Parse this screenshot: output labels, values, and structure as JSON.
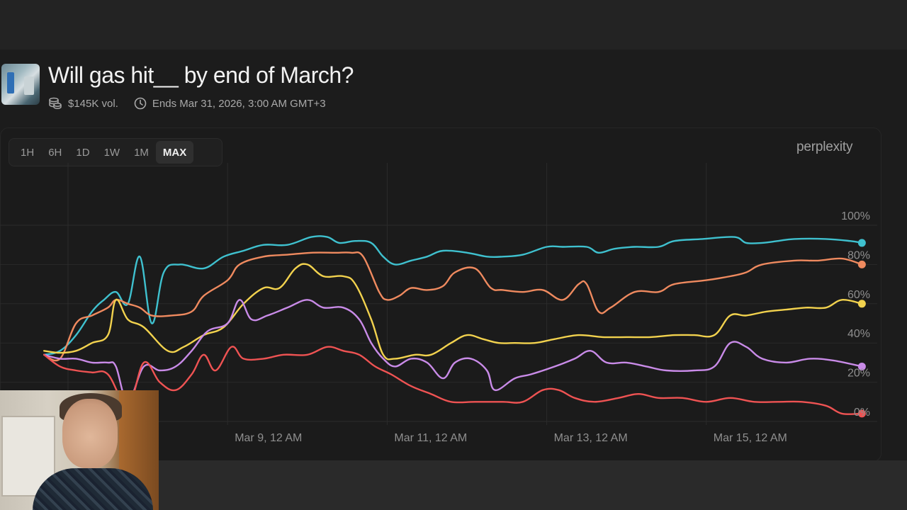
{
  "market": {
    "title": "Will gas hit__ by end of March?",
    "volume": "$145K vol.",
    "ends": "Ends Mar 31, 2026, 3:00 AM GMT+3"
  },
  "range_tabs": [
    {
      "label": "1H",
      "active": false
    },
    {
      "label": "6H",
      "active": false
    },
    {
      "label": "1D",
      "active": false
    },
    {
      "label": "1W",
      "active": false
    },
    {
      "label": "1M",
      "active": false
    },
    {
      "label": "MAX",
      "active": true
    }
  ],
  "brand": "perplexity",
  "colors": {
    "page_bg": "#1c1c1c",
    "grid": "#2b2b2b",
    "tick_text": "#8f8f8f",
    "cyan": "#3fc1cf",
    "orange": "#ef8a5f",
    "yellow": "#f2d24e",
    "purple": "#c98be8",
    "red": "#ef5353"
  },
  "icons": {
    "volume": "coins-stack-icon",
    "ends": "clock-icon"
  },
  "chart_data": {
    "type": "line",
    "x_ticks": [
      "Mar 9, 12 AM",
      "Mar 11, 12 AM",
      "Mar 13, 12 AM",
      "Mar 15, 12 AM"
    ],
    "y_ticks": [
      "100%",
      "80%",
      "60%",
      "40%",
      "20%",
      "0%"
    ],
    "ylim": [
      0,
      100
    ],
    "grid": true,
    "series": [
      {
        "color": "#3fc1cf",
        "points": [
          [
            6.2,
            34
          ],
          [
            6.4,
            36
          ],
          [
            6.6,
            44
          ],
          [
            6.8,
            56
          ],
          [
            6.95,
            62
          ],
          [
            7.1,
            66
          ],
          [
            7.25,
            60
          ],
          [
            7.4,
            84
          ],
          [
            7.55,
            50
          ],
          [
            7.7,
            76
          ],
          [
            7.9,
            80
          ],
          [
            8.2,
            78
          ],
          [
            8.45,
            84
          ],
          [
            8.7,
            87
          ],
          [
            8.95,
            90
          ],
          [
            9.25,
            90
          ],
          [
            9.55,
            94
          ],
          [
            9.75,
            94
          ],
          [
            9.9,
            91
          ],
          [
            10.1,
            92
          ],
          [
            10.3,
            91
          ],
          [
            10.45,
            84
          ],
          [
            10.6,
            80
          ],
          [
            10.8,
            82
          ],
          [
            11.0,
            84
          ],
          [
            11.2,
            87
          ],
          [
            11.5,
            86
          ],
          [
            11.75,
            84
          ],
          [
            11.95,
            84
          ],
          [
            12.2,
            85
          ],
          [
            12.5,
            89
          ],
          [
            12.7,
            89
          ],
          [
            13.0,
            89
          ],
          [
            13.15,
            86
          ],
          [
            13.35,
            88
          ],
          [
            13.6,
            89
          ],
          [
            13.9,
            89
          ],
          [
            14.1,
            92
          ],
          [
            14.45,
            93
          ],
          [
            14.85,
            94
          ],
          [
            15.0,
            91
          ],
          [
            15.2,
            91
          ],
          [
            15.4,
            92
          ],
          [
            15.6,
            93
          ],
          [
            16.0,
            93
          ],
          [
            16.3,
            92
          ],
          [
            16.45,
            91
          ]
        ]
      },
      {
        "color": "#ef8a5f",
        "points": [
          [
            6.2,
            34
          ],
          [
            6.4,
            32
          ],
          [
            6.6,
            50
          ],
          [
            6.8,
            54
          ],
          [
            7.0,
            58
          ],
          [
            7.1,
            62
          ],
          [
            7.25,
            60
          ],
          [
            7.4,
            58
          ],
          [
            7.55,
            54
          ],
          [
            7.8,
            54
          ],
          [
            8.05,
            56
          ],
          [
            8.2,
            64
          ],
          [
            8.5,
            72
          ],
          [
            8.65,
            80
          ],
          [
            8.95,
            84
          ],
          [
            9.25,
            85
          ],
          [
            9.55,
            86
          ],
          [
            9.85,
            86
          ],
          [
            10.05,
            86
          ],
          [
            10.2,
            84
          ],
          [
            10.4,
            66
          ],
          [
            10.5,
            62
          ],
          [
            10.65,
            64
          ],
          [
            10.8,
            68
          ],
          [
            11.0,
            67
          ],
          [
            11.2,
            69
          ],
          [
            11.35,
            76
          ],
          [
            11.6,
            78
          ],
          [
            11.8,
            68
          ],
          [
            11.95,
            67
          ],
          [
            12.2,
            66
          ],
          [
            12.45,
            67
          ],
          [
            12.7,
            62
          ],
          [
            12.9,
            70
          ],
          [
            13.0,
            70
          ],
          [
            13.15,
            56
          ],
          [
            13.3,
            58
          ],
          [
            13.6,
            66
          ],
          [
            13.9,
            66
          ],
          [
            14.1,
            70
          ],
          [
            14.5,
            72
          ],
          [
            14.8,
            74
          ],
          [
            15.0,
            76
          ],
          [
            15.2,
            80
          ],
          [
            15.6,
            82
          ],
          [
            15.9,
            82
          ],
          [
            16.2,
            83
          ],
          [
            16.45,
            80
          ]
        ]
      },
      {
        "color": "#f2d24e",
        "points": [
          [
            6.2,
            36
          ],
          [
            6.4,
            35
          ],
          [
            6.6,
            36
          ],
          [
            6.8,
            40
          ],
          [
            7.0,
            44
          ],
          [
            7.1,
            62
          ],
          [
            7.25,
            52
          ],
          [
            7.45,
            48
          ],
          [
            7.75,
            36
          ],
          [
            7.95,
            38
          ],
          [
            8.2,
            44
          ],
          [
            8.45,
            48
          ],
          [
            8.7,
            60
          ],
          [
            8.95,
            68
          ],
          [
            9.15,
            68
          ],
          [
            9.35,
            78
          ],
          [
            9.5,
            80
          ],
          [
            9.7,
            74
          ],
          [
            9.95,
            74
          ],
          [
            10.1,
            70
          ],
          [
            10.3,
            52
          ],
          [
            10.45,
            34
          ],
          [
            10.6,
            32
          ],
          [
            10.85,
            34
          ],
          [
            11.05,
            34
          ],
          [
            11.3,
            40
          ],
          [
            11.5,
            44
          ],
          [
            11.7,
            42
          ],
          [
            11.9,
            40
          ],
          [
            12.1,
            40
          ],
          [
            12.35,
            40
          ],
          [
            12.6,
            42
          ],
          [
            12.9,
            44
          ],
          [
            13.2,
            43
          ],
          [
            13.5,
            43
          ],
          [
            13.8,
            43
          ],
          [
            14.1,
            44
          ],
          [
            14.35,
            44
          ],
          [
            14.6,
            44
          ],
          [
            14.8,
            54
          ],
          [
            15.0,
            54
          ],
          [
            15.25,
            56
          ],
          [
            15.5,
            57
          ],
          [
            15.75,
            58
          ],
          [
            16.0,
            58
          ],
          [
            16.2,
            62
          ],
          [
            16.45,
            60
          ]
        ]
      },
      {
        "color": "#c98be8",
        "points": [
          [
            6.2,
            34
          ],
          [
            6.4,
            32
          ],
          [
            6.6,
            32
          ],
          [
            6.8,
            30
          ],
          [
            7.0,
            30
          ],
          [
            7.1,
            28
          ],
          [
            7.25,
            10
          ],
          [
            7.45,
            28
          ],
          [
            7.65,
            26
          ],
          [
            7.85,
            28
          ],
          [
            8.05,
            36
          ],
          [
            8.25,
            46
          ],
          [
            8.5,
            50
          ],
          [
            8.65,
            62
          ],
          [
            8.8,
            52
          ],
          [
            9.0,
            54
          ],
          [
            9.25,
            58
          ],
          [
            9.5,
            62
          ],
          [
            9.7,
            58
          ],
          [
            9.95,
            58
          ],
          [
            10.15,
            52
          ],
          [
            10.3,
            40
          ],
          [
            10.45,
            32
          ],
          [
            10.6,
            28
          ],
          [
            10.8,
            32
          ],
          [
            11.0,
            30
          ],
          [
            11.2,
            22
          ],
          [
            11.35,
            30
          ],
          [
            11.55,
            32
          ],
          [
            11.75,
            26
          ],
          [
            11.85,
            16
          ],
          [
            12.1,
            22
          ],
          [
            12.3,
            24
          ],
          [
            12.6,
            28
          ],
          [
            12.85,
            32
          ],
          [
            13.05,
            36
          ],
          [
            13.25,
            30
          ],
          [
            13.5,
            30
          ],
          [
            13.75,
            28
          ],
          [
            14.0,
            26
          ],
          [
            14.35,
            26
          ],
          [
            14.6,
            28
          ],
          [
            14.8,
            40
          ],
          [
            15.0,
            38
          ],
          [
            15.2,
            32
          ],
          [
            15.5,
            30
          ],
          [
            15.8,
            32
          ],
          [
            16.1,
            31
          ],
          [
            16.45,
            28
          ]
        ]
      },
      {
        "color": "#ef5353",
        "points": [
          [
            6.2,
            34
          ],
          [
            6.4,
            28
          ],
          [
            6.6,
            26
          ],
          [
            6.8,
            25
          ],
          [
            7.0,
            24
          ],
          [
            7.25,
            8
          ],
          [
            7.45,
            30
          ],
          [
            7.65,
            20
          ],
          [
            7.85,
            16
          ],
          [
            8.05,
            24
          ],
          [
            8.2,
            34
          ],
          [
            8.35,
            26
          ],
          [
            8.55,
            38
          ],
          [
            8.7,
            32
          ],
          [
            8.95,
            32
          ],
          [
            9.2,
            34
          ],
          [
            9.5,
            34
          ],
          [
            9.75,
            38
          ],
          [
            9.95,
            36
          ],
          [
            10.15,
            34
          ],
          [
            10.35,
            28
          ],
          [
            10.55,
            24
          ],
          [
            10.8,
            18
          ],
          [
            11.05,
            14
          ],
          [
            11.3,
            10
          ],
          [
            11.6,
            10
          ],
          [
            11.95,
            10
          ],
          [
            12.2,
            10
          ],
          [
            12.45,
            16
          ],
          [
            12.65,
            16
          ],
          [
            12.85,
            12
          ],
          [
            13.1,
            10
          ],
          [
            13.4,
            12
          ],
          [
            13.65,
            14
          ],
          [
            13.9,
            12
          ],
          [
            14.2,
            12
          ],
          [
            14.5,
            10
          ],
          [
            14.8,
            12
          ],
          [
            15.1,
            10
          ],
          [
            15.4,
            10
          ],
          [
            15.7,
            10
          ],
          [
            16.0,
            8
          ],
          [
            16.2,
            4
          ],
          [
            16.45,
            4
          ]
        ]
      }
    ]
  }
}
